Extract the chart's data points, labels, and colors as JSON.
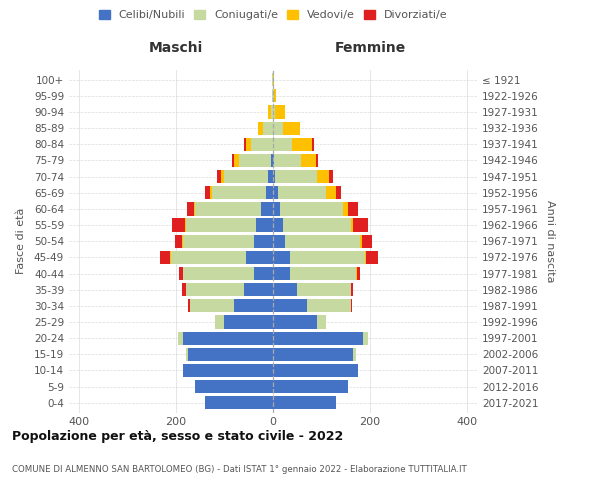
{
  "age_groups": [
    "0-4",
    "5-9",
    "10-14",
    "15-19",
    "20-24",
    "25-29",
    "30-34",
    "35-39",
    "40-44",
    "45-49",
    "50-54",
    "55-59",
    "60-64",
    "65-69",
    "70-74",
    "75-79",
    "80-84",
    "85-89",
    "90-94",
    "95-99",
    "100+"
  ],
  "birth_years": [
    "2017-2021",
    "2012-2016",
    "2007-2011",
    "2002-2006",
    "1997-2001",
    "1992-1996",
    "1987-1991",
    "1982-1986",
    "1977-1981",
    "1972-1976",
    "1967-1971",
    "1962-1966",
    "1957-1961",
    "1952-1956",
    "1947-1951",
    "1942-1946",
    "1937-1941",
    "1932-1936",
    "1927-1931",
    "1922-1926",
    "≤ 1921"
  ],
  "male": {
    "celibi": [
      140,
      160,
      185,
      175,
      185,
      100,
      80,
      60,
      40,
      55,
      40,
      35,
      25,
      15,
      10,
      5,
      0,
      0,
      0,
      0,
      0
    ],
    "coniugati": [
      0,
      0,
      0,
      5,
      10,
      20,
      90,
      120,
      145,
      155,
      145,
      145,
      135,
      110,
      90,
      65,
      45,
      20,
      5,
      2,
      2
    ],
    "vedovi": [
      0,
      0,
      0,
      0,
      0,
      0,
      0,
      0,
      0,
      2,
      2,
      2,
      3,
      5,
      8,
      10,
      10,
      10,
      5,
      0,
      0
    ],
    "divorziati": [
      0,
      0,
      0,
      0,
      0,
      0,
      5,
      8,
      8,
      20,
      15,
      25,
      15,
      10,
      8,
      5,
      5,
      0,
      0,
      0,
      0
    ]
  },
  "female": {
    "nubili": [
      130,
      155,
      175,
      165,
      185,
      90,
      70,
      50,
      35,
      35,
      25,
      20,
      15,
      10,
      5,
      3,
      0,
      0,
      0,
      0,
      0
    ],
    "coniugate": [
      0,
      0,
      0,
      5,
      10,
      20,
      90,
      110,
      135,
      155,
      155,
      140,
      130,
      100,
      85,
      55,
      40,
      20,
      5,
      2,
      1
    ],
    "vedove": [
      0,
      0,
      0,
      0,
      0,
      0,
      0,
      0,
      2,
      2,
      3,
      5,
      10,
      20,
      25,
      30,
      40,
      35,
      20,
      5,
      2
    ],
    "divorziate": [
      0,
      0,
      0,
      0,
      0,
      0,
      3,
      5,
      8,
      25,
      20,
      30,
      20,
      10,
      8,
      5,
      5,
      0,
      0,
      0,
      0
    ]
  },
  "colors": {
    "celibi": "#4472c4",
    "coniugati": "#c5d9a0",
    "vedovi": "#ffc000",
    "divorziati": "#e02020"
  },
  "legend_labels": [
    "Celibi/Nubili",
    "Coniugati/e",
    "Vedovi/e",
    "Divorziati/e"
  ],
  "xlim": 420,
  "title": "Popolazione per età, sesso e stato civile - 2022",
  "subtitle": "COMUNE DI ALMENNO SAN BARTOLOMEO (BG) - Dati ISTAT 1° gennaio 2022 - Elaborazione TUTTITALIA.IT",
  "ylabel_left": "Fasce di età",
  "ylabel_right": "Anni di nascita",
  "xlabel_maschi": "Maschi",
  "xlabel_femmine": "Femmine",
  "background_color": "#ffffff",
  "grid_color": "#cccccc"
}
